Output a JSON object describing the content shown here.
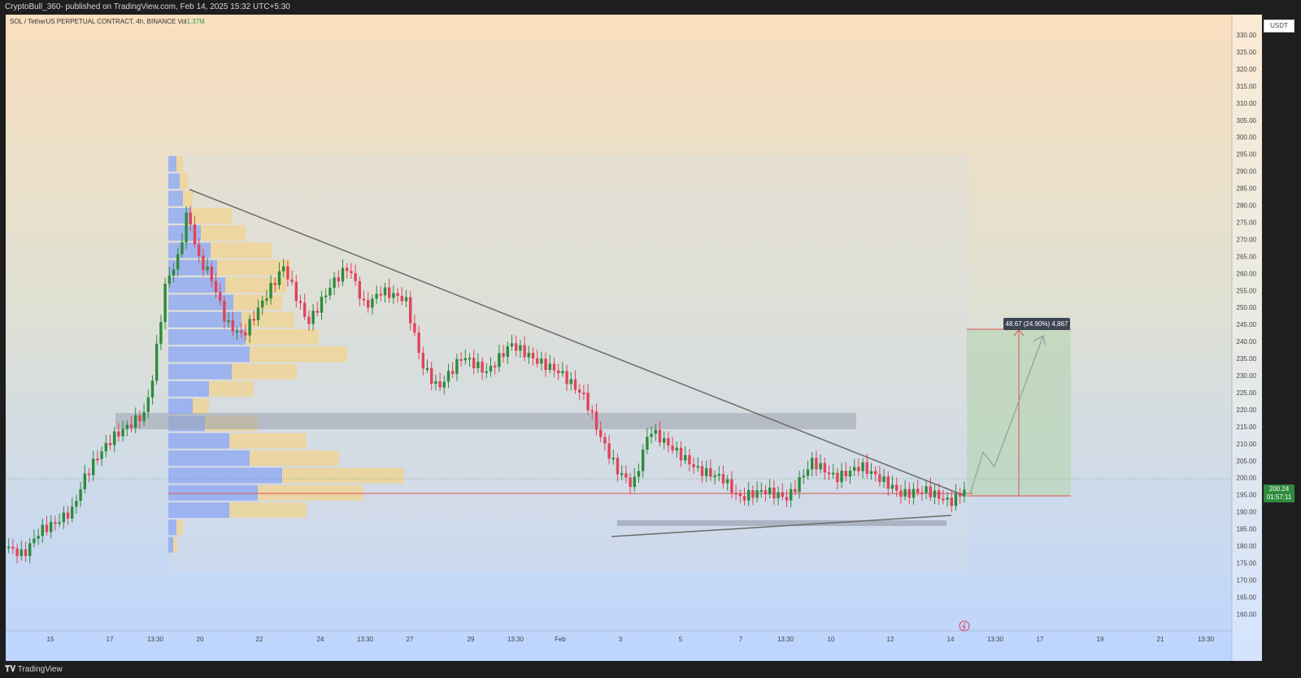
{
  "header": {
    "publisher_text": "CryptoBull_360- published on TradingView.com, Feb 14, 2025 15:32 UTC+5:30"
  },
  "legend": {
    "symbol_text": "SOL / TetherUS PERPETUAL CONTRACT, 4h, BINANCE",
    "vol_label": "Vol",
    "vol_value": "1.37M"
  },
  "axis": {
    "currency_badge": "USDT",
    "price_ticks": [
      "330.00",
      "325.00",
      "320.00",
      "315.00",
      "310.00",
      "305.00",
      "300.00",
      "295.00",
      "290.00",
      "285.00",
      "280.00",
      "275.00",
      "270.00",
      "265.00",
      "260.00",
      "255.00",
      "250.00",
      "245.00",
      "240.00",
      "235.00",
      "230.00",
      "225.00",
      "220.00",
      "215.00",
      "210.00",
      "205.00",
      "200.00",
      "195.00",
      "190.00",
      "185.00",
      "180.00",
      "175.00",
      "170.00",
      "165.00",
      "160.00"
    ],
    "time_ticks": [
      "15",
      "17",
      "13:30",
      "20",
      "22",
      "24",
      "13:30",
      "27",
      "29",
      "13:30",
      "Feb",
      "3",
      "5",
      "7",
      "13:30",
      "10",
      "12",
      "14",
      "13:30",
      "17",
      "19",
      "21",
      "13:30"
    ]
  },
  "current_price": {
    "price": "200.24",
    "countdown": "01:57:11"
  },
  "measure": {
    "label": "48.67 (24.90%) 4,867"
  },
  "footer": {
    "brand": "TradingView"
  },
  "colors": {
    "bull": "#2e8b3c",
    "bear": "#e0445a",
    "trendline": "#6b6b6b",
    "target_zone": "#b9d6b7",
    "support_line": "#e05050"
  }
}
